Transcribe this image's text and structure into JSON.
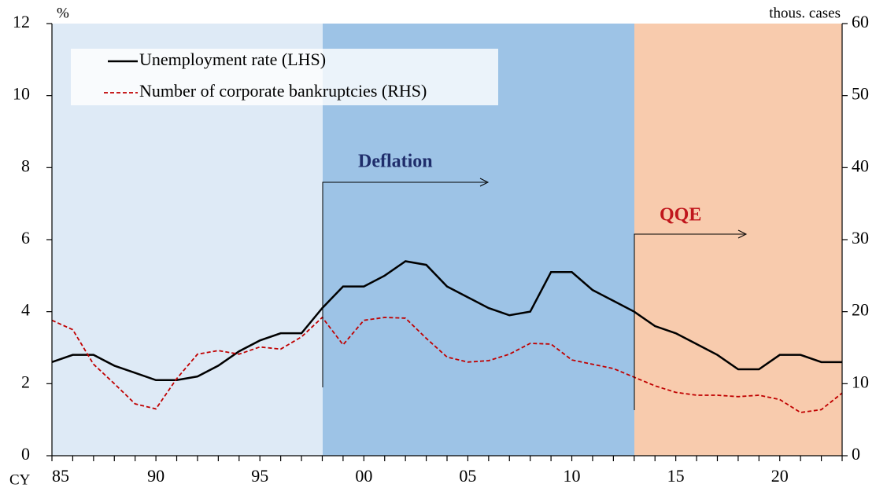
{
  "chart_data": {
    "type": "line",
    "y_unit": "%",
    "y2_unit": "thous. cases",
    "x_prefix": "CY",
    "x": [
      1985,
      1986,
      1987,
      1988,
      1989,
      1990,
      1991,
      1992,
      1993,
      1994,
      1995,
      1996,
      1997,
      1998,
      1999,
      2000,
      2001,
      2002,
      2003,
      2004,
      2005,
      2006,
      2007,
      2008,
      2009,
      2010,
      2011,
      2012,
      2013,
      2014,
      2015,
      2016,
      2017,
      2018,
      2019,
      2020,
      2021,
      2022,
      2023
    ],
    "series": [
      {
        "name": "Unemployment rate (LHS)",
        "color": "#000000",
        "style": "solid",
        "values": [
          2.6,
          2.8,
          2.8,
          2.5,
          2.3,
          2.1,
          2.1,
          2.2,
          2.5,
          2.9,
          3.2,
          3.4,
          3.4,
          4.1,
          4.7,
          4.7,
          5.0,
          5.4,
          5.3,
          4.7,
          4.4,
          4.1,
          3.9,
          4.0,
          5.1,
          5.1,
          4.6,
          4.3,
          4.0,
          3.6,
          3.4,
          3.1,
          2.8,
          2.4,
          2.4,
          2.8,
          2.8,
          2.6,
          2.6
        ]
      },
      {
        "name": "Number of corporate bankruptcies (RHS)",
        "color": "#c00000",
        "style": "dashed",
        "axis": "y2",
        "values": [
          18.8,
          17.5,
          12.7,
          10.0,
          7.2,
          6.5,
          10.7,
          14.1,
          14.6,
          14.1,
          15.1,
          14.8,
          16.5,
          19.2,
          15.4,
          18.8,
          19.2,
          19.1,
          16.3,
          13.7,
          13.0,
          13.2,
          14.1,
          15.6,
          15.5,
          13.3,
          12.7,
          12.1,
          10.9,
          9.7,
          8.8,
          8.4,
          8.4,
          8.2,
          8.4,
          7.8,
          6.0,
          6.4,
          8.7
        ]
      }
    ],
    "xlim": [
      1985,
      2023
    ],
    "xticks": [
      {
        "value": 1985,
        "label": "85"
      },
      {
        "value": 1990,
        "label": "90"
      },
      {
        "value": 1995,
        "label": "95"
      },
      {
        "value": 2000,
        "label": "00"
      },
      {
        "value": 2005,
        "label": "05"
      },
      {
        "value": 2010,
        "label": "10"
      },
      {
        "value": 2015,
        "label": "15"
      },
      {
        "value": 2020,
        "label": "20"
      }
    ],
    "ylim": [
      0,
      12
    ],
    "yticks": [
      0,
      2,
      4,
      6,
      8,
      10,
      12
    ],
    "y2lim": [
      0,
      60
    ],
    "y2ticks": [
      0,
      10,
      20,
      30,
      40,
      50,
      60
    ],
    "annotations": [
      "Deflation",
      "QQE"
    ]
  }
}
